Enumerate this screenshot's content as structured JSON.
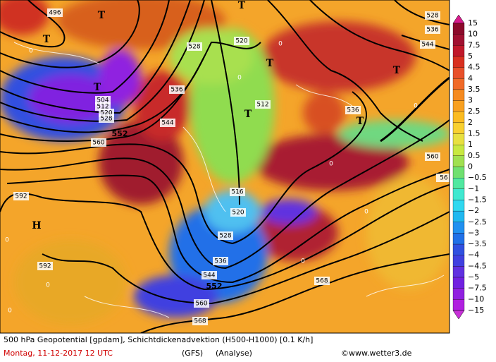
{
  "legend": {
    "labels": [
      "15",
      "10",
      "7.5",
      "5",
      "4.5",
      "4",
      "3.5",
      "3",
      "2.5",
      "2",
      "1.5",
      "1",
      "0.5",
      "0",
      "−0.5",
      "−1",
      "−1.5",
      "−2",
      "−2.5",
      "−3",
      "−3.5",
      "−4",
      "−4.5",
      "−5",
      "−7.5",
      "−10",
      "−15"
    ]
  },
  "footer": {
    "description": "500 hPa Geopotential [gpdam], Schichtdickenadvektion (H500-H1000) [0.1 K/h]",
    "date": "Montag, 11-12-2017  12 UTC",
    "model": "(GFS)",
    "mode": "(Analyse)",
    "copyright": "©www.wetter3.de"
  },
  "map": {
    "contour_labels": [
      "496",
      "528",
      "520",
      "536",
      "544",
      "552",
      "560",
      "504",
      "512",
      "520",
      "528",
      "512",
      "536",
      "592",
      "592",
      "552",
      "544",
      "536",
      "528",
      "520",
      "516",
      "560",
      "568",
      "568",
      "528",
      "536",
      "544",
      "560",
      "56"
    ],
    "pressure_centers": [
      "H",
      "T",
      "T",
      "T",
      "T",
      "T",
      "T",
      "T",
      "T"
    ],
    "zero_labels": [
      "0",
      "0",
      "0",
      "0",
      "0",
      "0",
      "0",
      "0",
      "0",
      "0"
    ]
  }
}
